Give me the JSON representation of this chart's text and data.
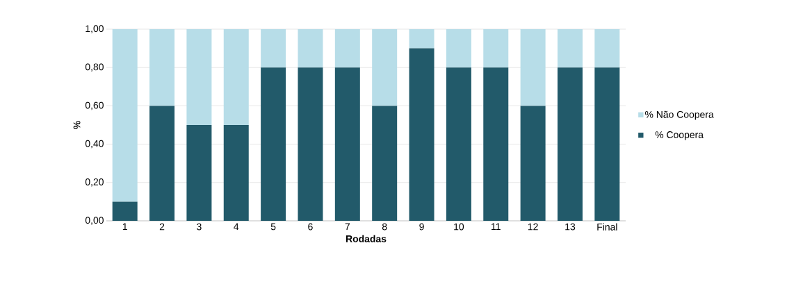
{
  "chart_data": {
    "type": "bar",
    "stacked": true,
    "xlabel": "Rodadas",
    "ylabel": "%",
    "categories": [
      "1",
      "2",
      "3",
      "4",
      "5",
      "6",
      "7",
      "8",
      "9",
      "10",
      "11",
      "12",
      "13",
      "Final"
    ],
    "series": [
      {
        "name": "% Coopera",
        "color": "#225a6a",
        "values": [
          0.1,
          0.6,
          0.5,
          0.5,
          0.8,
          0.8,
          0.8,
          0.6,
          0.9,
          0.8,
          0.8,
          0.6,
          0.8,
          0.8
        ]
      },
      {
        "name": "% Não Coopera",
        "color": "#b7dde8",
        "values": [
          0.9,
          0.4,
          0.5,
          0.5,
          0.2,
          0.2,
          0.2,
          0.4,
          0.1,
          0.2,
          0.2,
          0.4,
          0.2,
          0.2
        ]
      }
    ],
    "ylim": [
      0,
      1
    ],
    "yticks": [
      {
        "value": 0,
        "label": "0,00"
      },
      {
        "value": 0.2,
        "label": "0,20"
      },
      {
        "value": 0.4,
        "label": "0,40"
      },
      {
        "value": 0.6,
        "label": "0,60"
      },
      {
        "value": 0.8,
        "label": "0,80"
      },
      {
        "value": 1,
        "label": "1,00"
      }
    ],
    "grid": "y",
    "legend": "right"
  }
}
